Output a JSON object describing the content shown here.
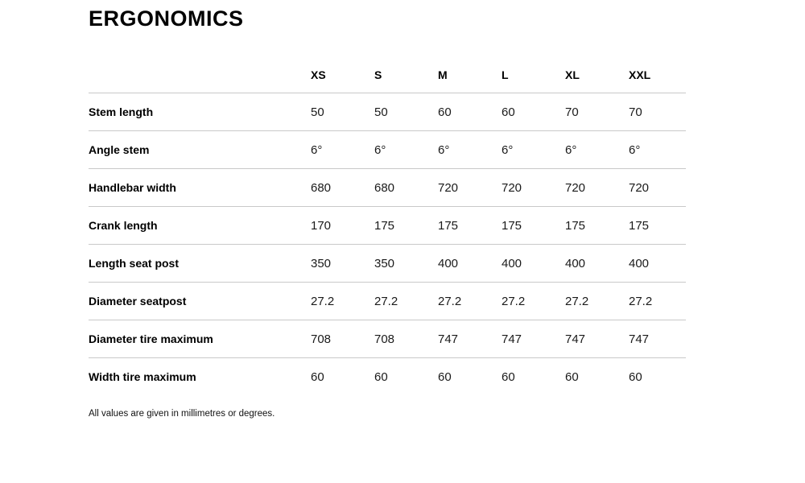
{
  "page": {
    "title": "ERGONOMICS",
    "footnote": "All values are given in millimetres or degrees."
  },
  "table": {
    "columns": [
      "XS",
      "S",
      "M",
      "L",
      "XL",
      "XXL"
    ],
    "rows": [
      {
        "label": "Stem length",
        "values": [
          "50",
          "50",
          "60",
          "60",
          "70",
          "70"
        ]
      },
      {
        "label": "Angle stem",
        "values": [
          "6°",
          "6°",
          "6°",
          "6°",
          "6°",
          "6°"
        ]
      },
      {
        "label": "Handlebar width",
        "values": [
          "680",
          "680",
          "720",
          "720",
          "720",
          "720"
        ]
      },
      {
        "label": "Crank length",
        "values": [
          "170",
          "175",
          "175",
          "175",
          "175",
          "175"
        ]
      },
      {
        "label": "Length seat post",
        "values": [
          "350",
          "350",
          "400",
          "400",
          "400",
          "400"
        ]
      },
      {
        "label": "Diameter seatpost",
        "values": [
          "27.2",
          "27.2",
          "27.2",
          "27.2",
          "27.2",
          "27.2"
        ]
      },
      {
        "label": "Diameter tire maximum",
        "values": [
          "708",
          "708",
          "747",
          "747",
          "747",
          "747"
        ]
      },
      {
        "label": "Width tire maximum",
        "values": [
          "60",
          "60",
          "60",
          "60",
          "60",
          "60"
        ]
      }
    ]
  },
  "colors": {
    "background": "#ffffff",
    "text": "#111111",
    "divider": "#c9c9c9"
  }
}
